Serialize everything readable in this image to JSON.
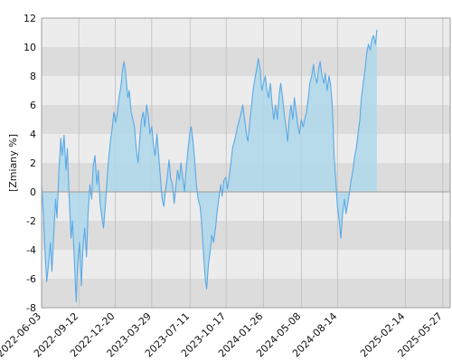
{
  "chart_data": {
    "type": "area",
    "title": "",
    "xlabel": "",
    "ylabel": "[Zmiany %]",
    "ylim": [
      -8,
      12
    ],
    "yticks": [
      -8,
      -6,
      -4,
      -2,
      0,
      2,
      4,
      6,
      8,
      10,
      12
    ],
    "xlim": [
      "2022-06-03",
      "2025-06-16"
    ],
    "xtick_labels": [
      "2022-06-03",
      "2022-09-12",
      "2022-12-20",
      "2023-03-29",
      "2023-07-11",
      "2023-10-17",
      "2024-01-26",
      "2024-05-08",
      "2024-08-14",
      "2025-02-14",
      "2025-05-27"
    ],
    "grid": true,
    "legend": "none",
    "colors": {
      "line": "#5aa9e6",
      "fill": "#aed8ea",
      "band_dark": "#dcdcdc",
      "band_light": "#ececec",
      "grid": "#bdbdbd",
      "zero_line": "#9a9a9a"
    },
    "series": [
      {
        "points": [
          [
            "2022-06-03",
            0.5
          ],
          [
            "2022-06-08",
            -1.5
          ],
          [
            "2022-06-13",
            -4.5
          ],
          [
            "2022-06-17",
            -6.2
          ],
          [
            "2022-06-22",
            -5.0
          ],
          [
            "2022-06-27",
            -3.5
          ],
          [
            "2022-07-01",
            -5.5
          ],
          [
            "2022-07-06",
            -3.0
          ],
          [
            "2022-07-11",
            -0.5
          ],
          [
            "2022-07-15",
            -1.8
          ],
          [
            "2022-07-20",
            1.5
          ],
          [
            "2022-07-25",
            3.7
          ],
          [
            "2022-07-29",
            2.5
          ],
          [
            "2022-08-03",
            3.9
          ],
          [
            "2022-08-08",
            1.5
          ],
          [
            "2022-08-12",
            3.0
          ],
          [
            "2022-08-17",
            -0.5
          ],
          [
            "2022-08-22",
            -3.2
          ],
          [
            "2022-08-26",
            -2.0
          ],
          [
            "2022-08-31",
            -4.8
          ],
          [
            "2022-09-05",
            -7.6
          ],
          [
            "2022-09-09",
            -5.0
          ],
          [
            "2022-09-14",
            -3.5
          ],
          [
            "2022-09-19",
            -6.5
          ],
          [
            "2022-09-23",
            -4.0
          ],
          [
            "2022-09-28",
            -2.5
          ],
          [
            "2022-10-03",
            -4.5
          ],
          [
            "2022-10-07",
            -1.5
          ],
          [
            "2022-10-12",
            0.5
          ],
          [
            "2022-10-17",
            -0.5
          ],
          [
            "2022-10-21",
            1.8
          ],
          [
            "2022-10-26",
            2.5
          ],
          [
            "2022-10-31",
            0.5
          ],
          [
            "2022-11-04",
            1.5
          ],
          [
            "2022-11-09",
            -0.8
          ],
          [
            "2022-11-14",
            -1.8
          ],
          [
            "2022-11-18",
            -2.5
          ],
          [
            "2022-11-23",
            -1.0
          ],
          [
            "2022-11-28",
            1.0
          ],
          [
            "2022-12-02",
            2.3
          ],
          [
            "2022-12-07",
            3.5
          ],
          [
            "2022-12-12",
            4.5
          ],
          [
            "2022-12-16",
            5.5
          ],
          [
            "2022-12-21",
            4.8
          ],
          [
            "2022-12-26",
            5.5
          ],
          [
            "2022-12-30",
            6.5
          ],
          [
            "2023-01-04",
            7.2
          ],
          [
            "2023-01-09",
            8.5
          ],
          [
            "2023-01-13",
            9.0
          ],
          [
            "2023-01-18",
            8.0
          ],
          [
            "2023-01-23",
            6.5
          ],
          [
            "2023-01-27",
            7.0
          ],
          [
            "2023-02-01",
            5.5
          ],
          [
            "2023-02-06",
            5.0
          ],
          [
            "2023-02-10",
            4.5
          ],
          [
            "2023-02-15",
            3.0
          ],
          [
            "2023-02-20",
            2.0
          ],
          [
            "2023-02-24",
            3.5
          ],
          [
            "2023-03-01",
            5.0
          ],
          [
            "2023-03-06",
            5.5
          ],
          [
            "2023-03-10",
            4.5
          ],
          [
            "2023-03-15",
            6.0
          ],
          [
            "2023-03-20",
            5.2
          ],
          [
            "2023-03-24",
            4.0
          ],
          [
            "2023-03-29",
            4.5
          ],
          [
            "2023-04-03",
            3.2
          ],
          [
            "2023-04-07",
            2.5
          ],
          [
            "2023-04-12",
            4.0
          ],
          [
            "2023-04-17",
            2.5
          ],
          [
            "2023-04-21",
            1.2
          ],
          [
            "2023-04-26",
            -0.5
          ],
          [
            "2023-05-01",
            -1.0
          ],
          [
            "2023-05-05",
            0.0
          ],
          [
            "2023-05-10",
            1.0
          ],
          [
            "2023-05-15",
            2.2
          ],
          [
            "2023-05-19",
            1.0
          ],
          [
            "2023-05-24",
            0.5
          ],
          [
            "2023-05-29",
            -0.8
          ],
          [
            "2023-06-02",
            0.3
          ],
          [
            "2023-06-07",
            1.5
          ],
          [
            "2023-06-12",
            0.8
          ],
          [
            "2023-06-16",
            2.0
          ],
          [
            "2023-06-21",
            1.0
          ],
          [
            "2023-06-26",
            0.0
          ],
          [
            "2023-06-30",
            1.5
          ],
          [
            "2023-07-05",
            2.8
          ],
          [
            "2023-07-10",
            4.0
          ],
          [
            "2023-07-14",
            4.5
          ],
          [
            "2023-07-19",
            3.5
          ],
          [
            "2023-07-24",
            2.0
          ],
          [
            "2023-07-28",
            0.5
          ],
          [
            "2023-08-02",
            -0.5
          ],
          [
            "2023-08-07",
            -1.0
          ],
          [
            "2023-08-11",
            -2.0
          ],
          [
            "2023-08-16",
            -4.0
          ],
          [
            "2023-08-21",
            -6.0
          ],
          [
            "2023-08-25",
            -6.7
          ],
          [
            "2023-08-30",
            -5.0
          ],
          [
            "2023-09-04",
            -4.0
          ],
          [
            "2023-09-08",
            -3.0
          ],
          [
            "2023-09-13",
            -3.5
          ],
          [
            "2023-09-18",
            -2.5
          ],
          [
            "2023-09-22",
            -1.5
          ],
          [
            "2023-09-27",
            -0.5
          ],
          [
            "2023-10-02",
            0.5
          ],
          [
            "2023-10-06",
            -0.3
          ],
          [
            "2023-10-11",
            0.8
          ],
          [
            "2023-10-16",
            1.0
          ],
          [
            "2023-10-20",
            0.2
          ],
          [
            "2023-10-25",
            1.0
          ],
          [
            "2023-10-30",
            2.0
          ],
          [
            "2023-11-03",
            3.0
          ],
          [
            "2023-11-08",
            3.5
          ],
          [
            "2023-11-13",
            4.0
          ],
          [
            "2023-11-17",
            4.5
          ],
          [
            "2023-11-22",
            5.0
          ],
          [
            "2023-11-27",
            5.5
          ],
          [
            "2023-12-01",
            6.0
          ],
          [
            "2023-12-06",
            5.0
          ],
          [
            "2023-12-11",
            4.0
          ],
          [
            "2023-12-15",
            3.5
          ],
          [
            "2023-12-20",
            4.8
          ],
          [
            "2023-12-25",
            6.0
          ],
          [
            "2023-12-29",
            7.0
          ],
          [
            "2024-01-03",
            7.8
          ],
          [
            "2024-01-08",
            8.5
          ],
          [
            "2024-01-12",
            9.2
          ],
          [
            "2024-01-17",
            8.5
          ],
          [
            "2024-01-22",
            7.0
          ],
          [
            "2024-01-26",
            7.5
          ],
          [
            "2024-01-31",
            8.0
          ],
          [
            "2024-02-05",
            7.0
          ],
          [
            "2024-02-09",
            6.5
          ],
          [
            "2024-02-14",
            7.5
          ],
          [
            "2024-02-19",
            6.0
          ],
          [
            "2024-02-23",
            5.0
          ],
          [
            "2024-02-28",
            6.0
          ],
          [
            "2024-03-04",
            5.0
          ],
          [
            "2024-03-08",
            6.5
          ],
          [
            "2024-03-13",
            7.5
          ],
          [
            "2024-03-18",
            6.5
          ],
          [
            "2024-03-22",
            5.5
          ],
          [
            "2024-03-27",
            4.5
          ],
          [
            "2024-04-01",
            3.5
          ],
          [
            "2024-04-05",
            5.0
          ],
          [
            "2024-04-10",
            6.0
          ],
          [
            "2024-04-15",
            5.0
          ],
          [
            "2024-04-19",
            6.5
          ],
          [
            "2024-04-24",
            5.5
          ],
          [
            "2024-04-29",
            4.5
          ],
          [
            "2024-05-03",
            4.0
          ],
          [
            "2024-05-08",
            5.0
          ],
          [
            "2024-05-13",
            4.5
          ],
          [
            "2024-05-17",
            5.0
          ],
          [
            "2024-05-22",
            5.5
          ],
          [
            "2024-05-27",
            6.5
          ],
          [
            "2024-05-31",
            7.5
          ],
          [
            "2024-06-05",
            8.0
          ],
          [
            "2024-06-10",
            8.8
          ],
          [
            "2024-06-14",
            8.0
          ],
          [
            "2024-06-19",
            7.5
          ],
          [
            "2024-06-24",
            8.5
          ],
          [
            "2024-06-28",
            9.0
          ],
          [
            "2024-07-03",
            8.0
          ],
          [
            "2024-07-08",
            7.5
          ],
          [
            "2024-07-12",
            8.2
          ],
          [
            "2024-07-17",
            7.0
          ],
          [
            "2024-07-22",
            8.0
          ],
          [
            "2024-07-26",
            7.5
          ],
          [
            "2024-07-31",
            6.0
          ],
          [
            "2024-08-05",
            2.5
          ],
          [
            "2024-08-09",
            1.0
          ],
          [
            "2024-08-14",
            -1.0
          ],
          [
            "2024-08-19",
            -2.0
          ],
          [
            "2024-08-23",
            -3.2
          ],
          [
            "2024-08-28",
            -1.5
          ],
          [
            "2024-09-02",
            -0.5
          ],
          [
            "2024-09-06",
            -1.5
          ],
          [
            "2024-09-11",
            -0.8
          ],
          [
            "2024-09-16",
            0.0
          ],
          [
            "2024-09-20",
            0.8
          ],
          [
            "2024-09-25",
            1.5
          ],
          [
            "2024-09-30",
            2.5
          ],
          [
            "2024-10-04",
            3.0
          ],
          [
            "2024-10-09",
            4.0
          ],
          [
            "2024-10-14",
            5.0
          ],
          [
            "2024-10-18",
            6.5
          ],
          [
            "2024-10-23",
            7.5
          ],
          [
            "2024-10-28",
            8.5
          ],
          [
            "2024-11-01",
            9.5
          ],
          [
            "2024-11-06",
            10.2
          ],
          [
            "2024-11-11",
            9.8
          ],
          [
            "2024-11-15",
            10.5
          ],
          [
            "2024-11-20",
            10.8
          ],
          [
            "2024-11-25",
            10.2
          ],
          [
            "2024-11-29",
            11.2
          ]
        ]
      }
    ]
  }
}
